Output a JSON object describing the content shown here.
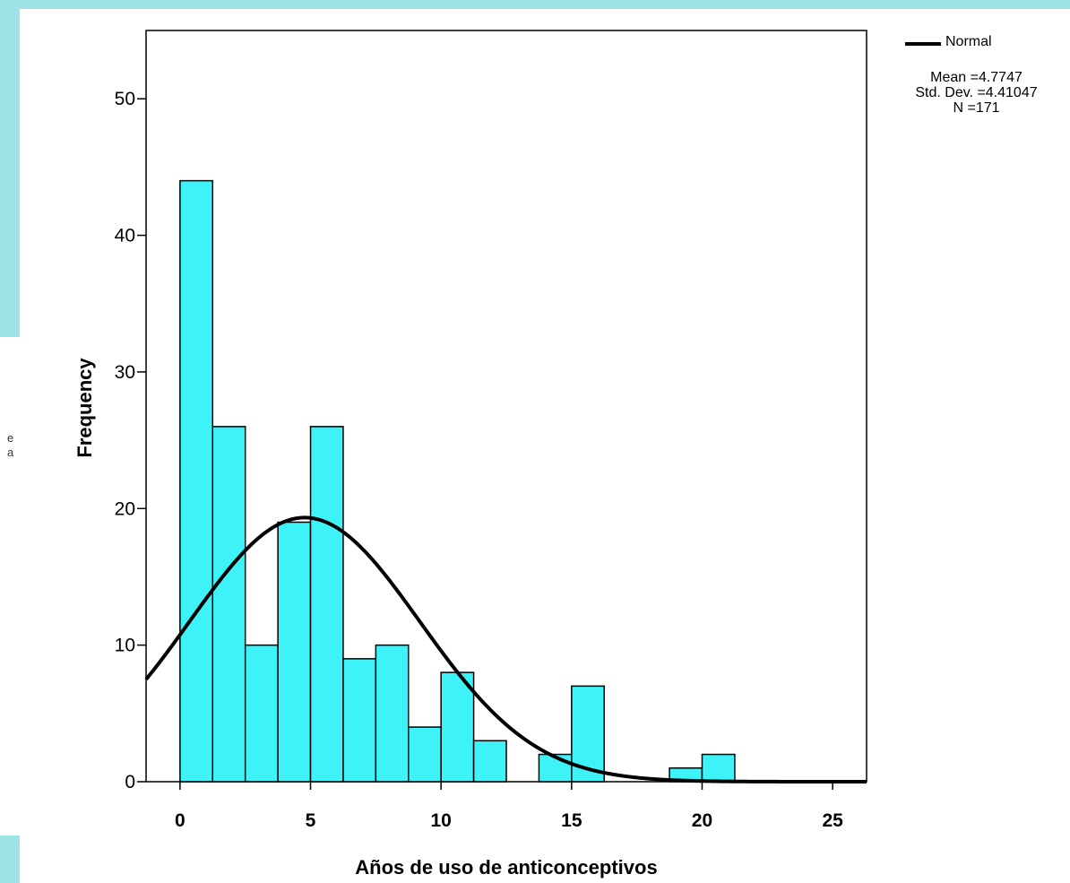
{
  "side_text": {
    "line1": "e",
    "line2": "a"
  },
  "legend": {
    "normal_label": "Normal",
    "mean": "Mean =4.7747",
    "std_dev": "Std. Dev. =4.41047",
    "n": "N =171"
  },
  "chart_data": {
    "type": "bar",
    "subtype": "histogram",
    "title": "",
    "xlabel": "Años de uso de anticonceptivos",
    "ylabel": "Frequency",
    "xlim": [
      -1.3,
      26.3
    ],
    "ylim": [
      0,
      55
    ],
    "x_ticks": [
      0,
      5,
      10,
      15,
      20,
      25
    ],
    "y_ticks": [
      0,
      10,
      20,
      30,
      40,
      50
    ],
    "bin_width": 1.25,
    "bins": [
      {
        "start": 0,
        "value": 44
      },
      {
        "start": 1.25,
        "value": 26
      },
      {
        "start": 2.5,
        "value": 10
      },
      {
        "start": 3.75,
        "value": 19
      },
      {
        "start": 5,
        "value": 26
      },
      {
        "start": 6.25,
        "value": 9
      },
      {
        "start": 7.5,
        "value": 10
      },
      {
        "start": 8.75,
        "value": 4
      },
      {
        "start": 10,
        "value": 8
      },
      {
        "start": 11.25,
        "value": 3
      },
      {
        "start": 12.5,
        "value": 0
      },
      {
        "start": 13.75,
        "value": 2
      },
      {
        "start": 15,
        "value": 7
      },
      {
        "start": 16.25,
        "value": 0
      },
      {
        "start": 17.5,
        "value": 0
      },
      {
        "start": 18.75,
        "value": 1
      },
      {
        "start": 20,
        "value": 2
      }
    ],
    "normal_curve": {
      "mean": 4.7747,
      "std_dev": 4.41047,
      "n": 171
    },
    "colors": {
      "bar_fill": "#3ef3f8",
      "bar_stroke": "#000000",
      "curve": "#000000"
    },
    "grid": false,
    "legend_position": "right"
  }
}
